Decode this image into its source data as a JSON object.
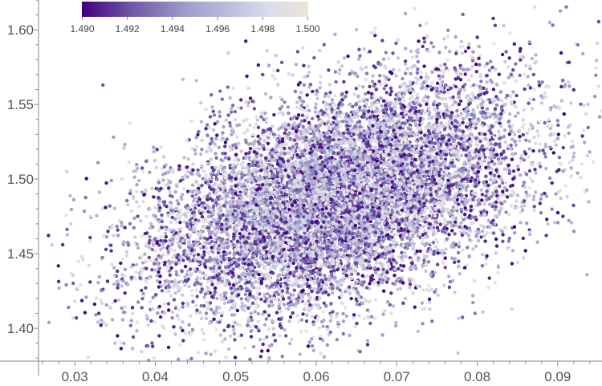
{
  "chart_data": {
    "type": "scatter",
    "title": "",
    "xlabel": "",
    "ylabel": "",
    "xlim": [
      0.0255,
      0.0955
    ],
    "ylim": [
      1.378,
      1.62
    ],
    "x_ticks": [
      "0.03",
      "0.04",
      "0.05",
      "0.06",
      "0.07",
      "0.08",
      "0.09"
    ],
    "y_ticks": [
      "1.40",
      "1.45",
      "1.50",
      "1.55",
      "1.60"
    ],
    "grid": false,
    "colorbar": {
      "location": "top-left",
      "range": [
        1.49,
        1.5
      ],
      "ticks": [
        "1.490",
        "1.492",
        "1.494",
        "1.496",
        "1.498",
        "1.500"
      ],
      "colors": [
        "#3f007d",
        "#6a51a3",
        "#9e9ac8",
        "#bcbddc",
        "#dadaeb",
        "#ede4d6"
      ]
    },
    "series": [
      {
        "points_sample": [
          {
            "x": 0.0285,
            "y": 1.456,
            "c": 1.491
          },
          {
            "x": 0.029,
            "y": 1.505,
            "c": 1.497
          },
          {
            "x": 0.03,
            "y": 1.418,
            "c": 1.498
          },
          {
            "x": 0.033,
            "y": 1.41,
            "c": 1.491
          },
          {
            "x": 0.0335,
            "y": 1.563,
            "c": 1.492
          },
          {
            "x": 0.035,
            "y": 1.39,
            "c": 1.496
          },
          {
            "x": 0.0405,
            "y": 1.395,
            "c": 1.491
          },
          {
            "x": 0.045,
            "y": 1.43,
            "c": 1.493
          },
          {
            "x": 0.048,
            "y": 1.545,
            "c": 1.494
          },
          {
            "x": 0.05,
            "y": 1.5,
            "c": 1.49
          },
          {
            "x": 0.052,
            "y": 1.44,
            "c": 1.497
          },
          {
            "x": 0.054,
            "y": 1.385,
            "c": 1.49
          },
          {
            "x": 0.055,
            "y": 1.475,
            "c": 1.492
          },
          {
            "x": 0.059,
            "y": 1.388,
            "c": 1.49
          },
          {
            "x": 0.06,
            "y": 1.52,
            "c": 1.495
          },
          {
            "x": 0.063,
            "y": 1.46,
            "c": 1.491
          },
          {
            "x": 0.065,
            "y": 1.6,
            "c": 1.496
          },
          {
            "x": 0.068,
            "y": 1.5,
            "c": 1.493
          },
          {
            "x": 0.072,
            "y": 1.455,
            "c": 1.498
          },
          {
            "x": 0.075,
            "y": 1.54,
            "c": 1.49
          },
          {
            "x": 0.078,
            "y": 1.505,
            "c": 1.494
          },
          {
            "x": 0.08,
            "y": 1.595,
            "c": 1.491
          },
          {
            "x": 0.083,
            "y": 1.48,
            "c": 1.497
          },
          {
            "x": 0.086,
            "y": 1.452,
            "c": 1.49
          },
          {
            "x": 0.087,
            "y": 1.57,
            "c": 1.492
          },
          {
            "x": 0.089,
            "y": 1.605,
            "c": 1.495
          },
          {
            "x": 0.0925,
            "y": 1.59,
            "c": 1.493
          },
          {
            "x": 0.093,
            "y": 1.51,
            "c": 1.499
          }
        ],
        "cloud": {
          "n": 11000,
          "x_mean": 0.0625,
          "y_mean": 1.488,
          "x_sd": 0.0115,
          "y_sd": 0.039,
          "correlation": 0.45,
          "c_range": [
            1.49,
            1.5
          ]
        }
      }
    ]
  }
}
